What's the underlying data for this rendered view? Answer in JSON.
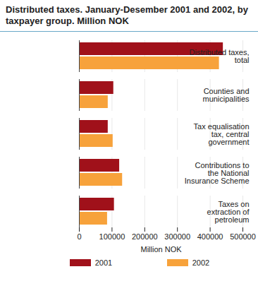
{
  "chart_data": {
    "type": "bar",
    "orientation": "horizontal",
    "title": "Distributed taxes. January-Desember 2001 and 2002, by taxpayer group. Million NOK",
    "x_label": "Million NOK",
    "categories": [
      "Distributed taxes, total",
      "Counties and municipalities",
      "Tax equalisation tax, central government",
      "Contributions to the National Insurance Scheme",
      "Taxes on extraction of petroleum"
    ],
    "series": [
      {
        "name": "2001",
        "color": "#a0111a",
        "values": [
          440000,
          105000,
          88000,
          123000,
          107000
        ]
      },
      {
        "name": "2002",
        "color": "#f7a23b",
        "values": [
          428000,
          88000,
          103000,
          132000,
          86000
        ]
      }
    ],
    "xlim": [
      0,
      500000
    ],
    "xticks": [
      0,
      100000,
      200000,
      300000,
      400000,
      500000
    ],
    "grid": true,
    "legend": "bottom"
  }
}
